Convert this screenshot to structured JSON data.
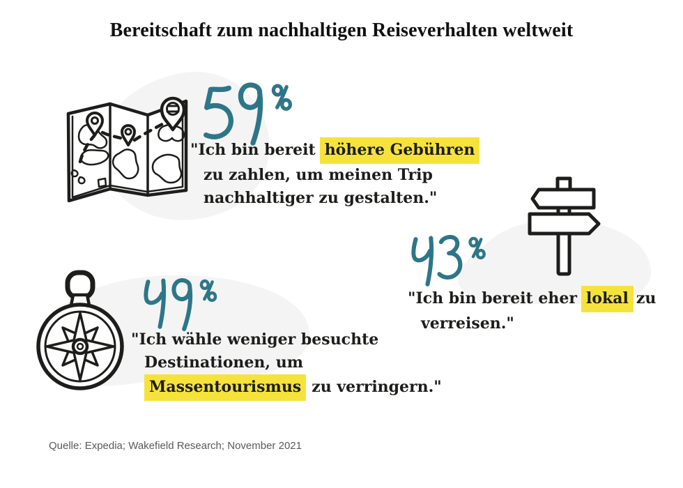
{
  "meta": {
    "title": "Bereitschaft zum nachhaltigen Reiseverhalten weltweit"
  },
  "colors": {
    "accent": "#2D7689",
    "highlight": "#F5E33C",
    "blob": "#F4F4F4",
    "ink": "#1D1D1B",
    "muted": "#595959"
  },
  "stats": [
    {
      "id": "higher-fees",
      "value": "59",
      "unit": "%",
      "icon": "map-icon",
      "line1_pre": "\"Ich bin bereit",
      "line1_hl": "höhere Gebühren",
      "line2": "zu zahlen, um meinen Trip",
      "line3": "nachhaltiger zu gestalten.\""
    },
    {
      "id": "local-travel",
      "value": "43",
      "unit": "%",
      "icon": "signpost-icon",
      "line1_pre": "\"Ich bin bereit eher",
      "line1_hl": "lokal",
      "line1_post": "zu",
      "line2": "verreisen.\""
    },
    {
      "id": "less-visited-destinations",
      "value": "49",
      "unit": "%",
      "icon": "compass-icon",
      "line1": "\"Ich wähle weniger besuchte",
      "line2": "Destinationen, um",
      "line3_hl": "Massentourismus",
      "line3_post": "zu verringern.\""
    }
  ],
  "source": "Quelle: Expedia; Wakefield Research; November 2021",
  "chart_data": {
    "type": "bar",
    "title": "Bereitschaft zum nachhaltigen Reiseverhalten weltweit",
    "categories": [
      "Ich bin bereit höhere Gebühren zu zahlen, um meinen Trip nachhaltiger zu gestalten.",
      "Ich bin bereit eher lokal zu verreisen.",
      "Ich wähle weniger besuchte Destinationen, um Massentourismus zu verringern."
    ],
    "values": [
      59,
      43,
      49
    ],
    "unit": "%",
    "ylim": [
      0,
      100
    ],
    "legend": "none",
    "source": "Quelle: Expedia; Wakefield Research; November 2021"
  }
}
